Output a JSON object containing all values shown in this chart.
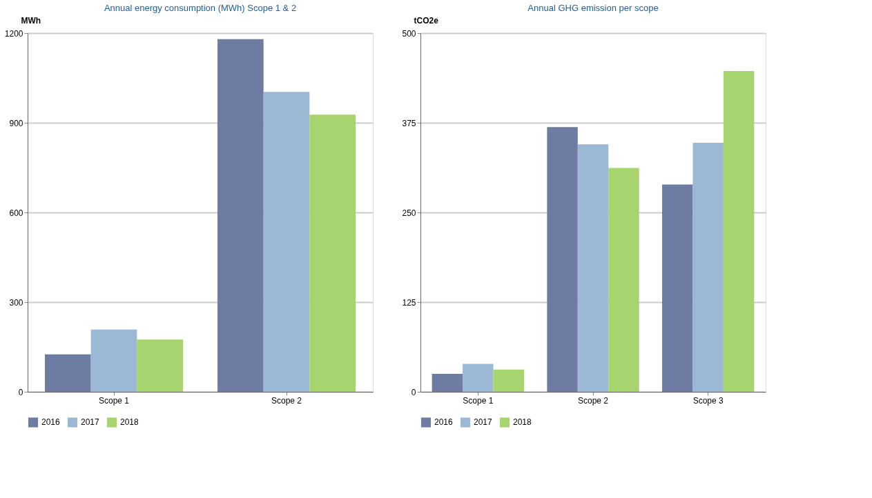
{
  "chart_data": [
    {
      "type": "bar",
      "title": "Annual energy consumption (MWh) Scope 1 & 2",
      "ylabel": "MWh",
      "categories": [
        "Scope 1",
        "Scope 2"
      ],
      "ylim": [
        0,
        1200
      ],
      "yticks": [
        0,
        300,
        600,
        900,
        1200
      ],
      "grid": "y",
      "legend": "bottom",
      "series": [
        {
          "name": "2016",
          "color": "#6e7ba3",
          "values": [
            125,
            1180
          ]
        },
        {
          "name": "2017",
          "color": "#9bb8d4",
          "values": [
            208,
            1003
          ]
        },
        {
          "name": "2018",
          "color": "#a8d46f",
          "values": [
            175,
            927
          ]
        }
      ]
    },
    {
      "type": "bar",
      "title": "Annual GHG emission per scope",
      "ylabel": "tCO2e",
      "categories": [
        "Scope 1",
        "Scope 2",
        "Scope 3"
      ],
      "ylim": [
        0,
        500
      ],
      "yticks": [
        0,
        125,
        250,
        375,
        500
      ],
      "grid": "y",
      "legend": "bottom",
      "series": [
        {
          "name": "2016",
          "color": "#6e7ba3",
          "values": [
            25,
            369,
            289
          ]
        },
        {
          "name": "2017",
          "color": "#9bb8d4",
          "values": [
            39,
            345,
            347
          ]
        },
        {
          "name": "2018",
          "color": "#a8d46f",
          "values": [
            31,
            312,
            447
          ]
        }
      ]
    }
  ]
}
